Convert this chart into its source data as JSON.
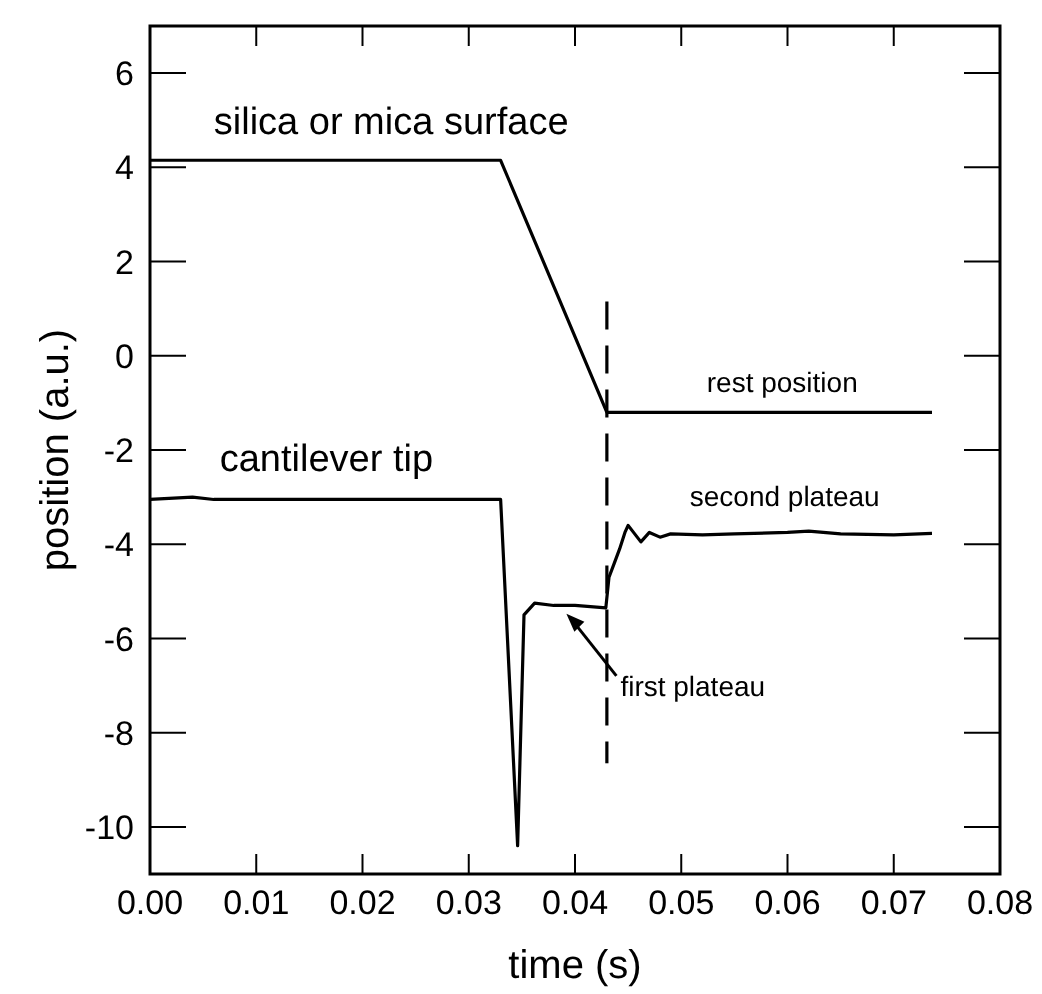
{
  "chart_data": {
    "type": "line",
    "xlabel": "time (s)",
    "ylabel": "position (a.u.)",
    "xlim": [
      0,
      0.08
    ],
    "xticks": [
      {
        "value": 0,
        "label": "0.00"
      },
      {
        "value": 0.01,
        "label": "0.01"
      },
      {
        "value": 0.02,
        "label": "0.02"
      },
      {
        "value": 0.03,
        "label": "0.03"
      },
      {
        "value": 0.04,
        "label": "0.04"
      },
      {
        "value": 0.05,
        "label": "0.05"
      },
      {
        "value": 0.06,
        "label": "0.06"
      },
      {
        "value": 0.07,
        "label": "0.07"
      },
      {
        "value": 0.08,
        "label": "0.08"
      }
    ],
    "ylim": [
      -11,
      7
    ],
    "yticks": [
      -10,
      -8,
      -6,
      -4,
      -2,
      0,
      2,
      4,
      6
    ],
    "marker": "none",
    "series": [
      {
        "color": "#000000",
        "line_style": "solid",
        "x": [
          0,
          0.033,
          0.043,
          0.0736
        ],
        "values": [
          4.15,
          4.15,
          -1.2,
          -1.2
        ]
      },
      {
        "color": "#000000",
        "line_style": "solid",
        "x": [
          0,
          0.004,
          0.006,
          0.01,
          0.015,
          0.02,
          0.025,
          0.03,
          0.033,
          0.0346,
          0.0352,
          0.0362,
          0.038,
          0.04,
          0.0429,
          0.0432,
          0.0437,
          0.0442,
          0.0447,
          0.045,
          0.0462,
          0.047,
          0.048,
          0.049,
          0.052,
          0.055,
          0.06,
          0.062,
          0.065,
          0.07,
          0.0736
        ],
        "values": [
          -3.05,
          -3.0,
          -3.05,
          -3.05,
          -3.05,
          -3.05,
          -3.05,
          -3.05,
          -3.05,
          -10.4,
          -5.5,
          -5.25,
          -5.3,
          -5.3,
          -5.35,
          -4.7,
          -4.4,
          -4.1,
          -3.75,
          -3.6,
          -3.95,
          -3.75,
          -3.85,
          -3.78,
          -3.8,
          -3.78,
          -3.75,
          -3.72,
          -3.78,
          -3.8,
          -3.77
        ]
      },
      {
        "color": "#000000",
        "line_style": "dashed",
        "x": [
          0.043,
          0.043
        ],
        "values": [
          1.15,
          -8.65
        ]
      }
    ],
    "annotations": [
      "silica or mica surface",
      "rest position",
      "cantilever tip",
      "second plateau",
      {
        "text": "first plateau",
        "x": 0.039,
        "y": -5.35
      }
    ]
  }
}
